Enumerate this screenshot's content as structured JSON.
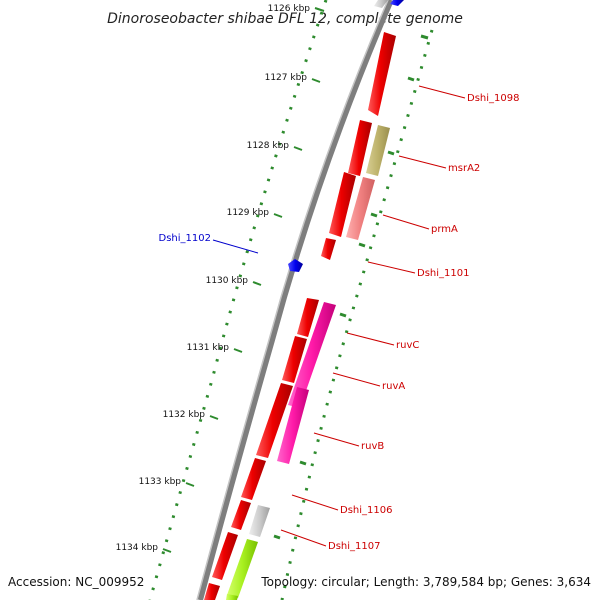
{
  "title": "Dinoroseobacter shibae DFL 12, complete genome",
  "footer": {
    "accession": "Accession: NC_009952",
    "summary": "Topology: circular; Length: 3,789,584 bp; Genes: 3,634"
  },
  "colors": {
    "backbone": "#8a8a8a",
    "tick": "#2e8b2e",
    "gene_label": "#cc0000",
    "reverse_label": "#0000cc"
  },
  "ticks": [
    "1126 kbp",
    "1127 kbp",
    "1128 kbp",
    "1129 kbp",
    "1130 kbp",
    "1131 kbp",
    "1132 kbp",
    "1133 kbp",
    "1134 kbp"
  ],
  "gene_labels": {
    "dshi_1098": "Dshi_1098",
    "msra2": "msrA2",
    "prma": "prmA",
    "dshi_1101": "Dshi_1101",
    "dshi_1102": "Dshi_1102",
    "ruvc": "ruvC",
    "ruva": "ruvA",
    "ruvb": "ruvB",
    "dshi_1106": "Dshi_1106",
    "dshi_1107": "Dshi_1107"
  }
}
